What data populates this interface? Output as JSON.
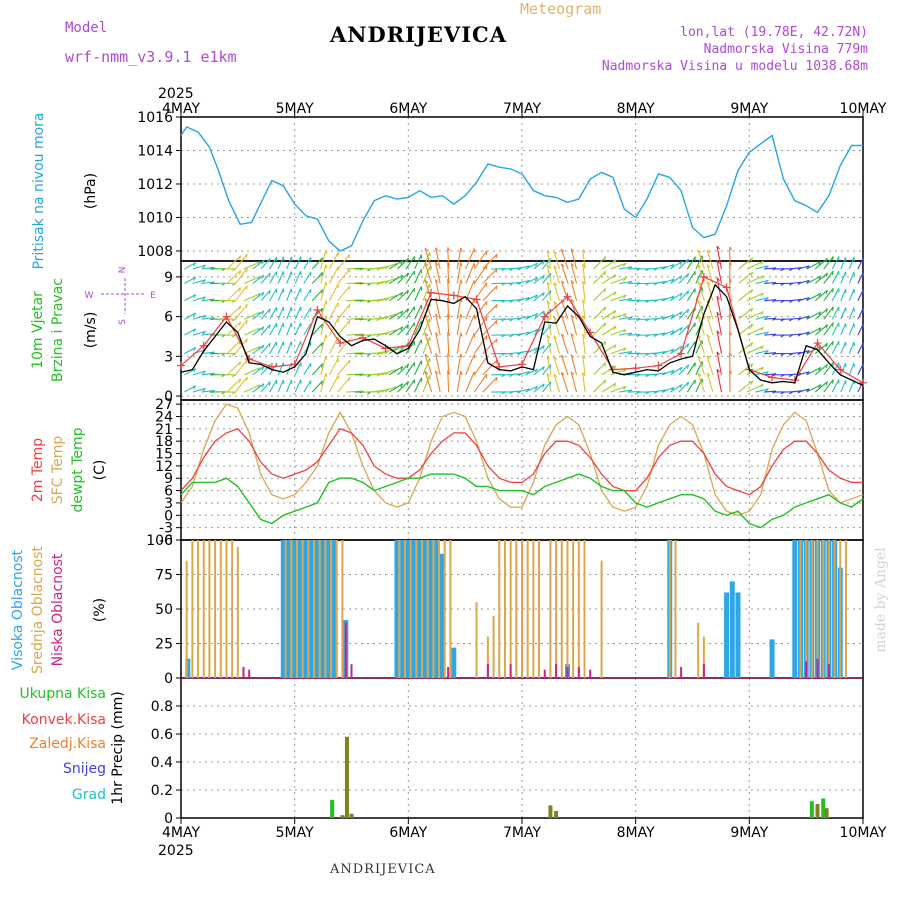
{
  "header": {
    "model_label": "Model",
    "model_name": "wrf-nmm_v3.9.1 e1km",
    "title": "ANDRIJEVICA",
    "subtitle": "Meteogram",
    "coords": "lon,lat (19.78E, 42.72N)",
    "elevation": "Nadmorska Visina 779m",
    "model_elevation": "Nadmorska Visina u modelu 1038.68m",
    "year_top": "2025",
    "year_bottom": "2025",
    "watermark": "made by Angel",
    "footer": "ANDRIJEVICA"
  },
  "colors": {
    "pressure": "#26a6e6",
    "temp2m": "#f04040",
    "sfc": "#d8a850",
    "dewpt": "#22c022",
    "high_cloud": "#2ea6e6",
    "mid_cloud": "#dca64a",
    "low_cloud": "#d02080",
    "total_precip": "#22c022",
    "conv_precip": "#f04040",
    "frozen": "#f08030",
    "snow": "#4040e0",
    "grad": "#20c0c0",
    "label_purple": "#b048d8"
  },
  "chart_data": [
    {
      "type": "line",
      "panel": "pressure",
      "label": "Pritisak na nivou mora",
      "unit": "(hPa)",
      "x_dates": [
        "4MAY",
        "5MAY",
        "6MAY",
        "7MAY",
        "8MAY",
        "9MAY",
        "10MAY"
      ],
      "ylim": [
        1007.4,
        1016.0
      ],
      "yticks": [
        1008,
        1010,
        1012,
        1014,
        1016
      ],
      "series": [
        {
          "x": [
            0,
            0.05,
            0.15,
            0.25,
            0.33,
            0.42,
            0.52,
            0.62,
            0.72,
            0.8,
            0.9,
            1.0,
            1.1,
            1.2,
            1.3,
            1.4,
            1.5,
            1.6,
            1.7,
            1.8,
            1.9,
            2.0,
            2.1,
            2.2,
            2.3,
            2.4,
            2.5,
            2.6,
            2.7,
            2.8,
            2.9,
            3.0,
            3.1,
            3.2,
            3.3,
            3.4,
            3.5,
            3.6,
            3.7,
            3.8,
            3.9,
            4.0,
            4.1,
            4.2,
            4.3,
            4.4,
            4.5,
            4.6,
            4.7,
            4.8,
            4.9,
            5.0,
            5.1,
            5.2,
            5.3,
            5.4,
            5.5,
            5.6,
            5.7,
            5.8,
            5.9,
            6.0
          ],
          "values": [
            1014.9,
            1015.4,
            1015.1,
            1014.2,
            1012.8,
            1011.0,
            1009.6,
            1009.7,
            1011.1,
            1012.2,
            1011.9,
            1010.8,
            1010.1,
            1009.9,
            1008.6,
            1008.0,
            1008.3,
            1009.8,
            1011.0,
            1011.3,
            1011.1,
            1011.2,
            1011.6,
            1011.2,
            1011.3,
            1010.8,
            1011.3,
            1012.1,
            1013.2,
            1013.0,
            1012.9,
            1012.6,
            1011.6,
            1011.3,
            1011.2,
            1010.9,
            1011.1,
            1012.3,
            1012.7,
            1012.4,
            1010.5,
            1010.0,
            1011.1,
            1012.6,
            1012.4,
            1011.6,
            1009.4,
            1008.8,
            1009.0,
            1010.7,
            1012.8,
            1013.9,
            1014.4,
            1014.9,
            1012.3,
            1011.0,
            1010.7,
            1010.3,
            1011.3,
            1013.1,
            1014.3,
            1014.3
          ]
        }
      ]
    },
    {
      "type": "line",
      "panel": "wind",
      "label1": "10m Vjetar",
      "label2": "Brzina i Pravac",
      "unit": "(m/s)",
      "compass": {
        "n": "N",
        "s": "S",
        "e": "E",
        "w": "W"
      },
      "ylim": [
        -0.3,
        10.2
      ],
      "yticks": [
        0,
        3,
        6,
        9
      ],
      "series": [
        {
          "name": "speed",
          "x": [
            0,
            0.1,
            0.2,
            0.3,
            0.4,
            0.5,
            0.6,
            0.7,
            0.8,
            0.9,
            1.0,
            1.1,
            1.2,
            1.3,
            1.4,
            1.5,
            1.6,
            1.7,
            1.8,
            1.9,
            2.0,
            2.1,
            2.2,
            2.3,
            2.4,
            2.5,
            2.6,
            2.7,
            2.8,
            2.9,
            3.0,
            3.1,
            3.2,
            3.3,
            3.4,
            3.5,
            3.6,
            3.7,
            3.8,
            3.9,
            4.0,
            4.1,
            4.2,
            4.3,
            4.4,
            4.5,
            4.6,
            4.7,
            4.8,
            4.9,
            5.0,
            5.1,
            5.2,
            5.3,
            5.4,
            5.5,
            5.6,
            5.7,
            5.8,
            5.9,
            6.0
          ],
          "values": [
            1.8,
            2.0,
            3.4,
            4.5,
            5.6,
            4.8,
            2.5,
            2.4,
            2.0,
            1.8,
            2.2,
            3.2,
            6.0,
            5.6,
            4.5,
            3.8,
            4.2,
            4.3,
            3.8,
            3.2,
            3.6,
            5.0,
            7.3,
            7.2,
            7.0,
            7.5,
            6.6,
            2.5,
            2.0,
            1.9,
            2.2,
            2.0,
            5.6,
            5.5,
            6.8,
            6.0,
            4.5,
            4.0,
            1.8,
            1.6,
            1.8,
            2.0,
            1.9,
            2.5,
            2.8,
            3.0,
            6.2,
            8.4,
            7.5,
            5.0,
            2.0,
            1.2,
            1.0,
            1.1,
            1.0,
            3.8,
            3.5,
            2.5,
            1.6,
            1.2,
            0.8
          ]
        },
        {
          "name": "gust",
          "x": [
            0,
            0.2,
            0.4,
            0.6,
            0.8,
            1.0,
            1.2,
            1.4,
            1.6,
            1.8,
            2.0,
            2.2,
            2.4,
            2.6,
            2.8,
            3.0,
            3.2,
            3.4,
            3.6,
            3.8,
            4.0,
            4.2,
            4.4,
            4.6,
            4.8,
            5.0,
            5.2,
            5.4,
            5.6,
            5.8,
            6.0
          ],
          "values": [
            2.3,
            3.8,
            6.0,
            2.8,
            2.2,
            2.4,
            6.5,
            4.0,
            4.4,
            3.6,
            3.8,
            7.8,
            7.6,
            7.3,
            2.2,
            2.4,
            6.0,
            7.5,
            4.8,
            2.0,
            2.1,
            2.3,
            3.2,
            9.0,
            8.2,
            2.0,
            1.4,
            1.2,
            4.0,
            2.0,
            1.0
          ]
        }
      ]
    },
    {
      "type": "line",
      "panel": "temperature",
      "label1": "2m Temp",
      "label2": "SFC Temp",
      "label3": "dewpt Temp",
      "unit": "(C)",
      "ylim": [
        -6,
        28
      ],
      "yticks": [
        -6,
        -3,
        0,
        3,
        6,
        9,
        12,
        15,
        18,
        21,
        24,
        27
      ],
      "x": [
        0,
        0.1,
        0.2,
        0.3,
        0.4,
        0.5,
        0.6,
        0.7,
        0.8,
        0.9,
        1.0,
        1.1,
        1.2,
        1.3,
        1.4,
        1.5,
        1.6,
        1.7,
        1.8,
        1.9,
        2.0,
        2.1,
        2.2,
        2.3,
        2.4,
        2.5,
        2.6,
        2.7,
        2.8,
        2.9,
        3.0,
        3.1,
        3.2,
        3.3,
        3.4,
        3.5,
        3.6,
        3.7,
        3.8,
        3.9,
        4.0,
        4.1,
        4.2,
        4.3,
        4.4,
        4.5,
        4.6,
        4.7,
        4.8,
        4.9,
        5.0,
        5.1,
        5.2,
        5.3,
        5.4,
        5.5,
        5.6,
        5.7,
        5.8,
        5.9,
        6.0
      ],
      "series": [
        {
          "name": "2m",
          "values": [
            6,
            9,
            14,
            18,
            20,
            21,
            18,
            13,
            10,
            9,
            10,
            11,
            13,
            17,
            21,
            20,
            17,
            12,
            10,
            9,
            9,
            11,
            15,
            18,
            20,
            20,
            17,
            12,
            9,
            8,
            8,
            10,
            15,
            18,
            18,
            17,
            14,
            10,
            7,
            6,
            6,
            9,
            14,
            17,
            18,
            18,
            15,
            10,
            7,
            6,
            5,
            7,
            12,
            16,
            18,
            18,
            15,
            11,
            9,
            8,
            8
          ]
        },
        {
          "name": "sfc",
          "values": [
            3,
            7,
            16,
            23,
            27,
            26,
            20,
            10,
            5,
            4,
            5,
            8,
            12,
            20,
            25,
            20,
            12,
            6,
            3,
            2,
            3,
            9,
            18,
            24,
            25,
            24,
            18,
            9,
            4,
            2,
            2,
            8,
            17,
            22,
            24,
            22,
            15,
            6,
            2,
            1,
            2,
            7,
            17,
            22,
            24,
            22,
            15,
            5,
            1,
            0,
            1,
            5,
            16,
            22,
            25,
            23,
            15,
            6,
            3,
            4,
            5
          ]
        },
        {
          "name": "dewpt",
          "values": [
            5,
            8,
            8,
            8,
            9,
            7,
            3,
            -1,
            -2,
            0,
            1,
            2,
            3,
            8,
            9,
            9,
            8,
            6,
            7,
            8,
            9,
            9,
            10,
            10,
            10,
            9,
            7,
            7,
            6,
            6,
            6,
            5,
            7,
            8,
            9,
            10,
            9,
            7,
            6,
            6,
            3,
            2,
            3,
            4,
            5,
            5,
            4,
            1,
            0,
            1,
            -2,
            -3,
            -1,
            0,
            2,
            3,
            4,
            5,
            3,
            2,
            4
          ]
        }
      ]
    },
    {
      "type": "bar",
      "panel": "clouds",
      "label1": "Visoka Oblacnost",
      "label2": "Srednja Oblacnost",
      "label3": "Niska Oblacnost",
      "unit": "(%)",
      "ylim": [
        0,
        100
      ],
      "yticks": [
        0,
        25,
        50,
        75,
        100
      ],
      "series": [
        {
          "name": "high",
          "x": [
            0.06,
            0.9,
            0.95,
            1.0,
            1.05,
            1.1,
            1.15,
            1.2,
            1.25,
            1.3,
            1.35,
            1.45,
            1.9,
            1.95,
            2.0,
            2.05,
            2.1,
            2.15,
            2.2,
            2.25,
            2.3,
            2.4,
            3.4,
            4.3,
            4.8,
            4.85,
            4.9,
            5.2,
            5.4,
            5.45,
            5.5,
            5.55,
            5.6,
            5.65,
            5.7,
            5.75,
            5.8
          ],
          "values": [
            14,
            100,
            100,
            100,
            100,
            100,
            100,
            100,
            100,
            100,
            100,
            42,
            100,
            100,
            100,
            100,
            100,
            100,
            100,
            100,
            90,
            22,
            10,
            100,
            62,
            70,
            62,
            28,
            100,
            100,
            100,
            100,
            100,
            100,
            100,
            100,
            80
          ]
        },
        {
          "name": "mid",
          "x": [
            0.05,
            0.1,
            0.15,
            0.2,
            0.25,
            0.3,
            0.35,
            0.4,
            0.45,
            0.5,
            0.92,
            0.97,
            1.02,
            1.07,
            1.12,
            1.17,
            1.22,
            1.27,
            1.32,
            1.37,
            1.42,
            1.92,
            1.97,
            2.02,
            2.07,
            2.12,
            2.17,
            2.22,
            2.27,
            2.32,
            2.37,
            2.6,
            2.7,
            2.75,
            2.8,
            2.85,
            2.9,
            2.95,
            3.0,
            3.05,
            3.1,
            3.15,
            3.25,
            3.3,
            3.35,
            3.4,
            3.45,
            3.5,
            3.55,
            3.7,
            4.3,
            4.35,
            4.55,
            4.6,
            5.45,
            5.5,
            5.55,
            5.6,
            5.65,
            5.7,
            5.75,
            5.8,
            5.85
          ],
          "values": [
            85,
            100,
            100,
            100,
            100,
            100,
            100,
            100,
            100,
            95,
            100,
            100,
            100,
            100,
            100,
            100,
            100,
            100,
            100,
            100,
            100,
            100,
            100,
            100,
            100,
            100,
            100,
            100,
            100,
            100,
            100,
            55,
            30,
            45,
            100,
            100,
            100,
            100,
            100,
            100,
            100,
            100,
            100,
            100,
            100,
            100,
            100,
            100,
            100,
            85,
            100,
            100,
            40,
            30,
            100,
            100,
            100,
            100,
            100,
            100,
            100,
            100,
            100
          ]
        },
        {
          "name": "low",
          "x": [
            0.55,
            0.6,
            1.45,
            1.5,
            2.35,
            2.7,
            2.9,
            3.2,
            3.3,
            3.4,
            3.5,
            3.6,
            4.4,
            4.6,
            5.5,
            5.6,
            5.7
          ],
          "values": [
            8,
            6,
            40,
            10,
            8,
            10,
            10,
            6,
            10,
            8,
            8,
            6,
            8,
            10,
            12,
            14,
            10
          ]
        }
      ]
    },
    {
      "type": "bar",
      "panel": "precip",
      "label1": "Ukupna Kisa",
      "label2": "Konvek.Kisa",
      "label3": "Zaledj.Kisa",
      "label4": "Snijeg",
      "label5": "Grad",
      "unit": "1hr Precip (mm)",
      "ylim": [
        0,
        1.0
      ],
      "yticks": [
        0,
        0.2,
        0.4,
        0.6,
        0.8
      ],
      "series": [
        {
          "name": "total",
          "x": [
            1.33,
            5.55,
            5.65
          ],
          "values": [
            0.13,
            0.12,
            0.14
          ]
        },
        {
          "name": "mixed",
          "x": [
            1.42,
            1.46,
            1.5,
            3.25,
            3.3,
            5.6,
            5.68
          ],
          "values": [
            0.02,
            0.58,
            0.03,
            0.09,
            0.05,
            0.1,
            0.07
          ]
        }
      ]
    }
  ]
}
